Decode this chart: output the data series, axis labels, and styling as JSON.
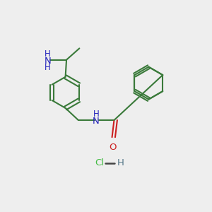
{
  "bg_color": "#eeeeee",
  "bond_color": "#3a7a3a",
  "n_color": "#2222bb",
  "o_color": "#cc2020",
  "cl_color": "#44bb44",
  "h_salt_color": "#557788",
  "line_width": 1.5,
  "font_size": 8.5,
  "fig_size": [
    3.0,
    3.0
  ],
  "dpi": 100,
  "xlim": [
    0,
    10
  ],
  "ylim": [
    0,
    10
  ]
}
